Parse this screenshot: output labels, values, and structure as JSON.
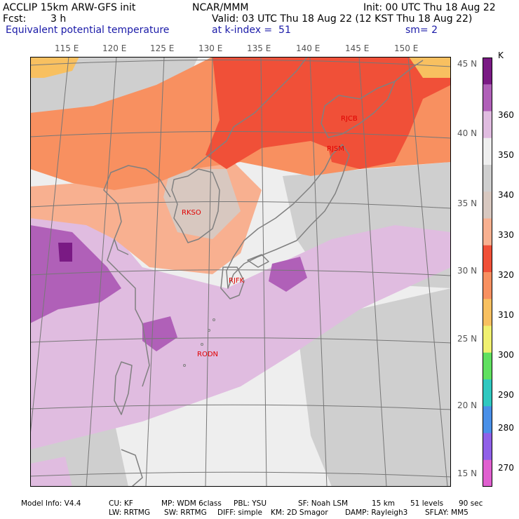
{
  "header": {
    "line1_left": "ACCLIP 15km ARW-GFS init",
    "line1_center": "NCAR/MMM",
    "line1_right": "Init: 00 UTC Thu 18 Aug 22",
    "fcst_label": "Fcst:",
    "fcst_value": "3 h",
    "valid": "Valid: 03 UTC Thu 18 Aug 22 (12 KST Thu 18 Aug 22)",
    "field_name": "Equivalent potential temperature",
    "level": "at k-index =  51",
    "smoothing": "sm= 2"
  },
  "map": {
    "longitude_labels": [
      "115 E",
      "120 E",
      "125 E",
      "130 E",
      "135 E",
      "140 E",
      "145 E",
      "150 E"
    ],
    "latitude_labels": [
      "45 N",
      "40 N",
      "35 N",
      "30 N",
      "25 N",
      "20 N",
      "15 N"
    ],
    "stations": [
      {
        "id": "RJCB",
        "lon": 143.2,
        "lat": 42.7
      },
      {
        "id": "RJSM",
        "lon": 141.4,
        "lat": 40.7
      },
      {
        "id": "RKSO",
        "lon": 127.0,
        "lat": 37.1
      },
      {
        "id": "RJFK",
        "lon": 130.7,
        "lat": 31.8
      },
      {
        "id": "RODN",
        "lon": 127.8,
        "lat": 26.4
      }
    ],
    "colors": {
      "k270": "#e060d0",
      "k280": "#9060e8",
      "k290": "#4a90e8",
      "k300": "#30c8c0",
      "k310": "#60e060",
      "k320": "#f0f070",
      "k330": "#f8c060",
      "k340": "#f89060",
      "k350": "#f05038",
      "k360": "#f8b090",
      "k370": "#d8c8c0",
      "k380": "#cfcfcf",
      "k390": "#eeeeee",
      "k400": "#e0bce0",
      "k410": "#b060b8",
      "k420": "#7a1a84"
    },
    "coastline_color": "#808080",
    "grid_color": "#777777"
  },
  "colorbar": {
    "unit": "K",
    "labels": [
      "360",
      "350",
      "340",
      "330",
      "320",
      "310",
      "300",
      "290",
      "280",
      "270"
    ],
    "colors": [
      "#7a1a84",
      "#b060b8",
      "#e0bce0",
      "#eeeeee",
      "#cfcfcf",
      "#d8c8c0",
      "#f8b090",
      "#f05038",
      "#f89060",
      "#f8c060",
      "#f0f070",
      "#60e060",
      "#30c8c0",
      "#4a90e8",
      "#9060e8",
      "#e060d0"
    ]
  },
  "footer": {
    "line1": [
      "Model Info: V4.4",
      "CU: KF",
      "MP: WDM 6class",
      "PBL: YSU",
      "SF: Noah LSM",
      "15 km",
      "51 levels",
      "90 sec"
    ],
    "line2": [
      "LW: RRTMG",
      "SW: RRTMG",
      "DIFF: simple",
      "KM: 2D Smagor",
      "DAMP: Rayleigh3",
      "SFLAY: MM5"
    ]
  }
}
